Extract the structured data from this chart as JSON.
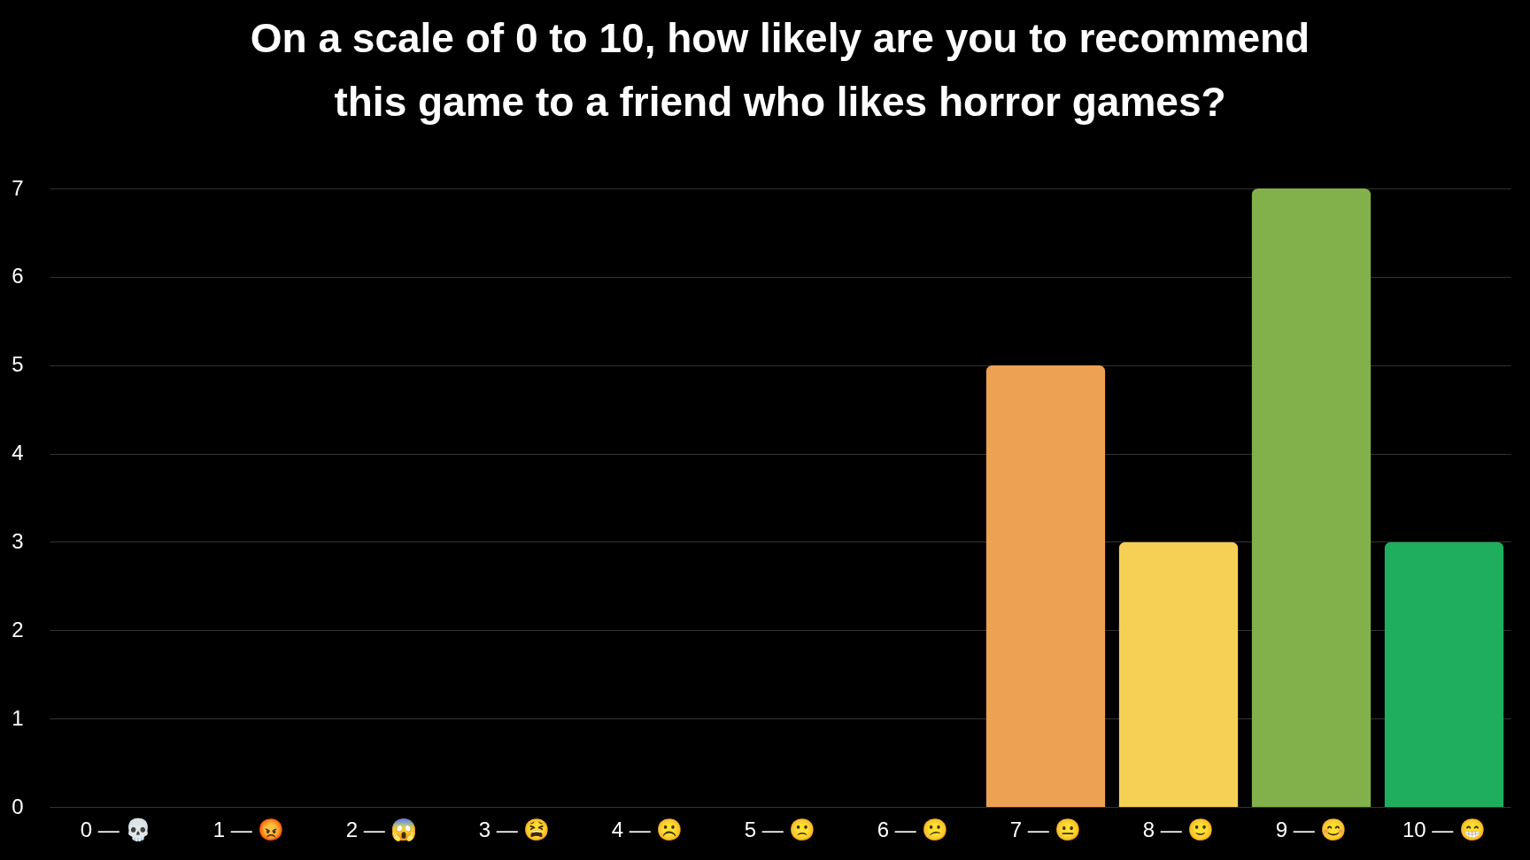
{
  "chart_data": {
    "type": "bar",
    "title": "On a scale of 0 to 10, how likely are you to recommend this game to a friend who likes horror games?",
    "categories": [
      "0 — 💀",
      "1 — 😡",
      "2 — 😱",
      "3 — 😫",
      "4 — ☹️",
      "5 — 🙁",
      "6 — 😕",
      "7 — 😐",
      "8 — 🙂",
      "9 — 😊",
      "10 — 😁"
    ],
    "values": [
      0,
      0,
      0,
      0,
      0,
      0,
      0,
      5,
      3,
      7,
      3
    ],
    "colors": [
      null,
      null,
      null,
      null,
      null,
      null,
      null,
      "#eda152",
      "#f6cf55",
      "#82b04a",
      "#1fae5e"
    ],
    "ylim": [
      0,
      7
    ],
    "yticks": [
      0,
      1,
      2,
      3,
      4,
      5,
      6,
      7
    ],
    "grid": "y"
  }
}
